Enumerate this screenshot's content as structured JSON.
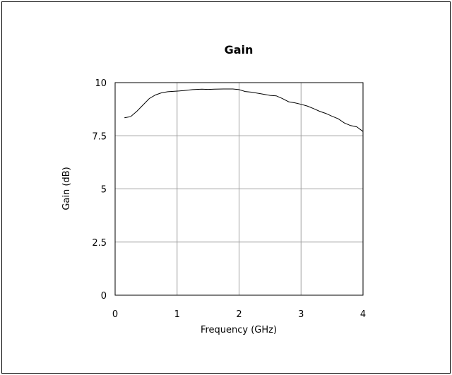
{
  "chart_data": {
    "type": "line",
    "title": "Gain",
    "xlabel": "Frequency (GHz)",
    "ylabel": "Gain (dB)",
    "xlim": [
      0,
      4
    ],
    "ylim": [
      0,
      10
    ],
    "xticks": [
      0,
      1,
      2,
      3,
      4
    ],
    "xtick_labels": [
      "0",
      "1",
      "2",
      "3",
      "4"
    ],
    "yticks": [
      0,
      2.5,
      5,
      7.5,
      10
    ],
    "ytick_labels": [
      "0",
      "2.5",
      "5",
      "7.5",
      "10"
    ],
    "grid": true,
    "series": [
      {
        "x": [
          0.15,
          0.25,
          0.35,
          0.45,
          0.55,
          0.65,
          0.75,
          0.85,
          1.0,
          1.1,
          1.25,
          1.4,
          1.5,
          1.6,
          1.75,
          1.9,
          2.0,
          2.1,
          2.2,
          2.35,
          2.5,
          2.6,
          2.7,
          2.8,
          2.9,
          3.0,
          3.1,
          3.2,
          3.3,
          3.4,
          3.5,
          3.6,
          3.7,
          3.8,
          3.9,
          4.0
        ],
        "y": [
          8.35,
          8.4,
          8.65,
          8.95,
          9.25,
          9.42,
          9.52,
          9.57,
          9.6,
          9.62,
          9.67,
          9.69,
          9.68,
          9.69,
          9.7,
          9.7,
          9.67,
          9.58,
          9.55,
          9.48,
          9.4,
          9.38,
          9.25,
          9.1,
          9.05,
          8.98,
          8.9,
          8.78,
          8.65,
          8.55,
          8.42,
          8.3,
          8.1,
          7.98,
          7.92,
          7.7
        ]
      }
    ],
    "colors": {
      "line": "#000000",
      "grid": "#a0a0a0",
      "axis": "#000000"
    }
  }
}
